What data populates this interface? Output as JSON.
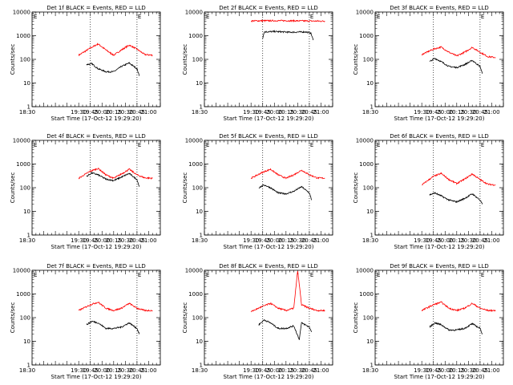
{
  "chart_data": [
    {
      "type": "line",
      "title": "Det 1f BLACK = Events, RED = LLD",
      "xlabel": "Start Time (17-Oct-12 19:29:20)",
      "ylabel": "Counts/sec",
      "xlim": [
        "18:30",
        "21:15"
      ],
      "ylim": [
        1,
        10000
      ],
      "y_scale": "log",
      "marker_text": "E",
      "x_tick_labels": [
        "19:30",
        "19:45",
        "20:00",
        "20:15",
        "20:30",
        "20:45",
        "21:00"
      ],
      "y_tick_labels": [
        "1",
        "10",
        "100",
        "1000",
        "10000"
      ],
      "event_lines": [
        "19:45",
        "20:45"
      ],
      "series": [
        {
          "color": "#ff0000",
          "x": [
            "19:30",
            "19:45",
            "19:55",
            "20:05",
            "20:15",
            "20:25",
            "20:35",
            "20:45",
            "20:55",
            "21:05"
          ],
          "y": [
            150,
            300,
            450,
            250,
            150,
            250,
            400,
            270,
            160,
            150
          ]
        },
        {
          "color": "#000000",
          "x": [
            "19:40",
            "19:47",
            "19:55",
            "20:05",
            "20:15",
            "20:25",
            "20:35",
            "20:45",
            "20:48"
          ],
          "y": [
            60,
            65,
            40,
            30,
            30,
            50,
            70,
            40,
            20
          ]
        }
      ]
    },
    {
      "type": "line",
      "title": "Det 2f BLACK = Events, RED = LLD",
      "xlabel": "Start Time (17-Oct-12 19:29:20)",
      "ylabel": "Counts/sec",
      "xlim": [
        "18:30",
        "21:15"
      ],
      "ylim": [
        1,
        10000
      ],
      "y_scale": "log",
      "marker_text": "E",
      "x_tick_labels": [
        "19:30",
        "19:45",
        "20:00",
        "20:15",
        "20:30",
        "20:45",
        "21:00"
      ],
      "y_tick_labels": [
        "1",
        "10",
        "100",
        "1000",
        "10000"
      ],
      "event_lines": [
        "19:45",
        "20:45"
      ],
      "series": [
        {
          "color": "#ff0000",
          "x": [
            "19:30",
            "19:50",
            "20:15",
            "20:40",
            "21:05"
          ],
          "y": [
            4200,
            4300,
            4300,
            4200,
            4100
          ]
        },
        {
          "color": "#000000",
          "x": [
            "19:45",
            "19:47",
            "20:00",
            "20:20",
            "20:40",
            "20:47",
            "20:50"
          ],
          "y": [
            800,
            1450,
            1500,
            1400,
            1450,
            1300,
            650
          ]
        }
      ]
    },
    {
      "type": "line",
      "title": "Det 3f BLACK = Events, RED = LLD",
      "xlabel": "Start Time (17-Oct-12 19:29:20)",
      "ylabel": "Counts/sec",
      "xlim": [
        "18:30",
        "21:15"
      ],
      "ylim": [
        1,
        10000
      ],
      "y_scale": "log",
      "marker_text": "E",
      "x_tick_labels": [
        "19:30",
        "19:45",
        "20:00",
        "20:15",
        "20:30",
        "20:45",
        "21:00"
      ],
      "y_tick_labels": [
        "1",
        "10",
        "100",
        "1000",
        "10000"
      ],
      "event_lines": [
        "19:45",
        "20:45"
      ],
      "series": [
        {
          "color": "#ff0000",
          "x": [
            "19:30",
            "19:45",
            "19:55",
            "20:05",
            "20:15",
            "20:25",
            "20:35",
            "20:45",
            "20:55",
            "21:05"
          ],
          "y": [
            160,
            270,
            330,
            200,
            140,
            200,
            320,
            200,
            130,
            120
          ]
        },
        {
          "color": "#000000",
          "x": [
            "19:40",
            "19:47",
            "19:55",
            "20:05",
            "20:15",
            "20:25",
            "20:35",
            "20:45",
            "20:48"
          ],
          "y": [
            80,
            110,
            80,
            50,
            45,
            60,
            90,
            50,
            25
          ]
        }
      ]
    },
    {
      "type": "line",
      "title": "Det 4f BLACK = Events, RED = LLD",
      "xlabel": "Start Time (17-Oct-12 19:29:20)",
      "ylabel": "Counts/sec",
      "xlim": [
        "18:30",
        "21:15"
      ],
      "ylim": [
        1,
        10000
      ],
      "y_scale": "log",
      "marker_text": "E",
      "x_tick_labels": [
        "19:30",
        "19:45",
        "20:00",
        "20:15",
        "20:30",
        "20:45",
        "21:00"
      ],
      "y_tick_labels": [
        "1",
        "10",
        "100",
        "1000",
        "10000"
      ],
      "event_lines": [
        "19:45",
        "20:45"
      ],
      "series": [
        {
          "color": "#ff0000",
          "x": [
            "19:30",
            "19:45",
            "19:55",
            "20:05",
            "20:15",
            "20:25",
            "20:35",
            "20:45",
            "20:55",
            "21:05"
          ],
          "y": [
            250,
            500,
            650,
            350,
            250,
            380,
            600,
            350,
            260,
            250
          ]
        },
        {
          "color": "#000000",
          "x": [
            "19:40",
            "19:47",
            "19:55",
            "20:05",
            "20:15",
            "20:25",
            "20:35",
            "20:45",
            "20:48"
          ],
          "y": [
            300,
            420,
            350,
            230,
            200,
            280,
            400,
            220,
            110
          ]
        }
      ]
    },
    {
      "type": "line",
      "title": "Det 5f BLACK = Events, RED = LLD",
      "xlabel": "Start Time (17-Oct-12 19:29:20)",
      "ylabel": "Counts/sec",
      "xlim": [
        "18:30",
        "21:15"
      ],
      "ylim": [
        1,
        10000
      ],
      "y_scale": "log",
      "marker_text": "E",
      "x_tick_labels": [
        "19:30",
        "19:45",
        "20:00",
        "20:15",
        "20:30",
        "20:45",
        "21:00"
      ],
      "y_tick_labels": [
        "1",
        "10",
        "100",
        "1000",
        "10000"
      ],
      "event_lines": [
        "19:45",
        "20:45"
      ],
      "series": [
        {
          "color": "#ff0000",
          "x": [
            "19:30",
            "19:45",
            "19:55",
            "20:05",
            "20:15",
            "20:25",
            "20:35",
            "20:45",
            "20:55",
            "21:05"
          ],
          "y": [
            250,
            450,
            600,
            350,
            250,
            350,
            550,
            350,
            260,
            250
          ]
        },
        {
          "color": "#000000",
          "x": [
            "19:40",
            "19:47",
            "19:55",
            "20:05",
            "20:15",
            "20:25",
            "20:35",
            "20:45",
            "20:48"
          ],
          "y": [
            100,
            130,
            100,
            60,
            55,
            70,
            110,
            60,
            30
          ]
        }
      ]
    },
    {
      "type": "line",
      "title": "Det 6f BLACK = Events, RED = LLD",
      "xlabel": "Start Time (17-Oct-12 19:29:20)",
      "ylabel": "Counts/sec",
      "xlim": [
        "18:30",
        "21:15"
      ],
      "ylim": [
        1,
        10000
      ],
      "y_scale": "log",
      "marker_text": "E",
      "x_tick_labels": [
        "19:30",
        "19:45",
        "20:00",
        "20:15",
        "20:30",
        "20:45",
        "21:00"
      ],
      "y_tick_labels": [
        "1",
        "10",
        "100",
        "1000",
        "10000"
      ],
      "event_lines": [
        "19:45",
        "20:45"
      ],
      "series": [
        {
          "color": "#ff0000",
          "x": [
            "19:30",
            "19:45",
            "19:55",
            "20:05",
            "20:15",
            "20:25",
            "20:35",
            "20:45",
            "20:55",
            "21:05"
          ],
          "y": [
            130,
            300,
            400,
            220,
            150,
            230,
            380,
            220,
            140,
            130
          ]
        },
        {
          "color": "#000000",
          "x": [
            "19:40",
            "19:47",
            "19:55",
            "20:05",
            "20:15",
            "20:25",
            "20:35",
            "20:45",
            "20:48"
          ],
          "y": [
            50,
            60,
            45,
            30,
            25,
            35,
            55,
            30,
            20
          ]
        }
      ]
    },
    {
      "type": "line",
      "title": "Det 7f BLACK = Events, RED = LLD",
      "xlabel": "Start Time (17-Oct-12 19:29:20)",
      "ylabel": "Counts/sec",
      "xlim": [
        "18:30",
        "21:15"
      ],
      "ylim": [
        1,
        10000
      ],
      "y_scale": "log",
      "marker_text": "E",
      "x_tick_labels": [
        "19:30",
        "19:45",
        "20:00",
        "20:15",
        "20:30",
        "20:45",
        "21:00"
      ],
      "y_tick_labels": [
        "1",
        "10",
        "100",
        "1000",
        "10000"
      ],
      "event_lines": [
        "19:45",
        "20:45"
      ],
      "series": [
        {
          "color": "#ff0000",
          "x": [
            "19:30",
            "19:45",
            "19:55",
            "20:05",
            "20:15",
            "20:25",
            "20:35",
            "20:45",
            "20:55",
            "21:05"
          ],
          "y": [
            200,
            350,
            450,
            250,
            200,
            250,
            400,
            250,
            200,
            200
          ]
        },
        {
          "color": "#000000",
          "x": [
            "19:40",
            "19:47",
            "19:55",
            "20:05",
            "20:15",
            "20:25",
            "20:35",
            "20:45",
            "20:48"
          ],
          "y": [
            50,
            70,
            60,
            35,
            35,
            40,
            60,
            35,
            20
          ]
        }
      ]
    },
    {
      "type": "line",
      "title": "Det 8f BLACK = Events, RED = LLD",
      "xlabel": "Start Time (17-Oct-12 19:29:20)",
      "ylabel": "Counts/sec",
      "xlim": [
        "18:30",
        "21:15"
      ],
      "ylim": [
        1,
        10000
      ],
      "y_scale": "log",
      "marker_text": "E",
      "x_tick_labels": [
        "19:30",
        "19:45",
        "20:00",
        "20:15",
        "20:30",
        "20:45",
        "21:00"
      ],
      "y_tick_labels": [
        "1",
        "10",
        "100",
        "1000",
        "10000"
      ],
      "event_lines": [
        "19:45",
        "20:45"
      ],
      "series": [
        {
          "color": "#ff0000",
          "x": [
            "19:30",
            "19:45",
            "19:55",
            "20:05",
            "20:15",
            "20:25",
            "20:30",
            "20:35",
            "20:45",
            "20:55",
            "21:05"
          ],
          "y": [
            180,
            300,
            400,
            250,
            200,
            250,
            10000,
            350,
            250,
            200,
            200
          ]
        },
        {
          "color": "#000000",
          "x": [
            "19:40",
            "19:47",
            "19:55",
            "20:05",
            "20:15",
            "20:25",
            "20:32",
            "20:35",
            "20:45",
            "20:48"
          ],
          "y": [
            50,
            80,
            60,
            35,
            35,
            45,
            12,
            60,
            40,
            25
          ]
        }
      ]
    },
    {
      "type": "line",
      "title": "Det 9f BLACK = Events, RED = LLD",
      "xlabel": "Start Time (17-Oct-12 19:29:20)",
      "ylabel": "Counts/sec",
      "xlim": [
        "18:30",
        "21:15"
      ],
      "ylim": [
        1,
        10000
      ],
      "y_scale": "log",
      "marker_text": "E",
      "x_tick_labels": [
        "19:30",
        "19:45",
        "20:00",
        "20:15",
        "20:30",
        "20:45",
        "21:00"
      ],
      "y_tick_labels": [
        "1",
        "10",
        "100",
        "1000",
        "10000"
      ],
      "event_lines": [
        "19:45",
        "20:45"
      ],
      "series": [
        {
          "color": "#ff0000",
          "x": [
            "19:30",
            "19:45",
            "19:55",
            "20:05",
            "20:15",
            "20:25",
            "20:35",
            "20:45",
            "20:55",
            "21:05"
          ],
          "y": [
            200,
            350,
            450,
            250,
            200,
            250,
            400,
            250,
            200,
            200
          ]
        },
        {
          "color": "#000000",
          "x": [
            "19:40",
            "19:47",
            "19:55",
            "20:05",
            "20:15",
            "20:25",
            "20:35",
            "20:45",
            "20:48"
          ],
          "y": [
            40,
            60,
            50,
            30,
            30,
            35,
            55,
            35,
            20
          ]
        }
      ]
    }
  ]
}
